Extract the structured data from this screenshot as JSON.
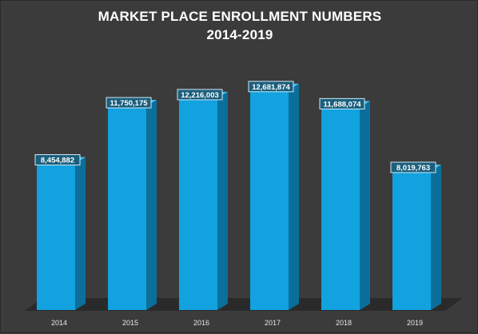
{
  "chart_data": {
    "type": "bar",
    "title_line1": "MARKET PLACE ENROLLMENT NUMBERS",
    "title_line2": "2014-2019",
    "categories": [
      "2014",
      "2015",
      "2016",
      "2017",
      "2018",
      "2019"
    ],
    "values": [
      8454882,
      11750175,
      12216003,
      12681874,
      11688074,
      8019763
    ],
    "value_labels": [
      "8,454,882",
      "11,750,175",
      "12,216,003",
      "12,681,874",
      "11,688,074",
      "8,019,763"
    ],
    "style": "3d-column",
    "grid": false,
    "colors": {
      "bar_front": "#11a2df",
      "bar_side": "#0b6f9c",
      "bar_top": "#45c0ee",
      "floor": "#2a2a2a",
      "background": "#3b3b3b",
      "label_box": "#1b5f7c",
      "label_border": "#cfe8f3"
    }
  }
}
